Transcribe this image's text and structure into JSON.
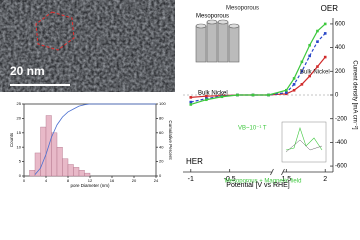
{
  "figure": {
    "scale_bar": "20 nm"
  },
  "chart_data": [
    {
      "type": "histogram",
      "x_label": "pore Diameter (nm)",
      "y_label": "Counts",
      "y2_label": "Cumulative Percent",
      "bins": [
        1,
        2,
        3,
        4,
        5,
        6,
        7,
        8,
        9,
        10,
        11,
        12
      ],
      "values": [
        2,
        8,
        17,
        21,
        15,
        10,
        6,
        4,
        3,
        2,
        1
      ],
      "color": "#e8b9c8",
      "xlim": [
        0,
        24
      ],
      "xticks": [
        0,
        4,
        8,
        12,
        16,
        20,
        24
      ],
      "ylim": [
        0,
        25
      ],
      "yticks": [
        0,
        5,
        10,
        15,
        20,
        25
      ],
      "y2lim": [
        0,
        100
      ],
      "y2ticks": [
        0,
        20,
        40,
        60,
        80,
        100
      ],
      "cumulative": {
        "x": [
          2,
          3,
          4,
          5,
          6,
          7,
          8,
          9,
          10,
          11,
          12
        ],
        "values": [
          2,
          11,
          30,
          54,
          71,
          82,
          89,
          93,
          97,
          99,
          100
        ],
        "color": "#4a6fd0",
        "axis": "y2"
      }
    },
    {
      "type": "line",
      "x_label": "Potential [V vs RHE]",
      "y_label": "Current density [mA cm⁻²]",
      "x": [
        -1.0,
        -0.8,
        -0.6,
        -0.4,
        -0.2,
        0.0,
        1.5,
        1.6,
        1.7,
        1.8,
        1.9,
        2.0
      ],
      "xlim": [
        -1.1,
        2.1
      ],
      "xbreak": [
        0.05,
        1.45
      ],
      "xticks": [
        -1.0,
        -0.5,
        1.5,
        2.0
      ],
      "ylim": [
        -650,
        650
      ],
      "yticks": [
        600,
        400,
        200,
        0,
        -200,
        -400,
        -600
      ],
      "y_axis_side": "right",
      "series": [
        {
          "name": "Bulk Nickel",
          "color": "#d02a2a",
          "values": [
            -20,
            -10,
            -5,
            0,
            0,
            0,
            10,
            40,
            90,
            160,
            240,
            320
          ]
        },
        {
          "name": "Mesoporous",
          "color": "#2a47c8",
          "values": [
            -60,
            -30,
            -10,
            0,
            0,
            0,
            20,
            90,
            200,
            330,
            450,
            520
          ]
        },
        {
          "name": "Mesoporous + Magnetic field",
          "color": "#3cc83c",
          "values": [
            -80,
            -40,
            -15,
            0,
            0,
            0,
            40,
            140,
            280,
            420,
            540,
            600
          ]
        }
      ],
      "annotations": {
        "oer": "OER",
        "her": "HER",
        "mesoporous": "Mesoporous",
        "bulk_left": "Bulk Nickel",
        "field": "VB~10⁻¹ T"
      }
    }
  ]
}
